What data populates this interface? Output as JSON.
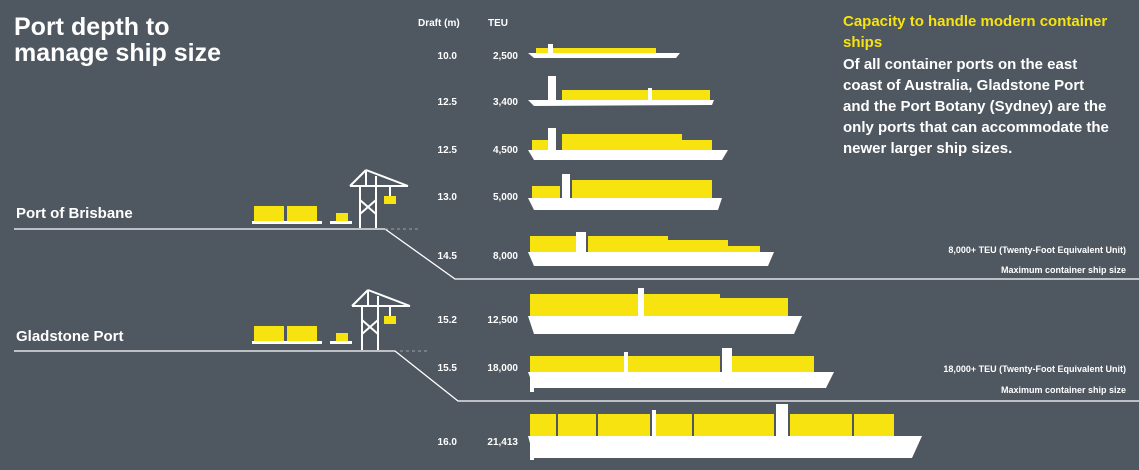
{
  "title": {
    "line1": "Port depth to",
    "line2": "manage ship size"
  },
  "columns": {
    "draft_header": "Draft (m)",
    "teu_header": "TEU"
  },
  "ports": [
    {
      "name": "Port of Brisbane"
    },
    {
      "name": "Gladstone Port"
    }
  ],
  "ships": [
    {
      "draft": "10.0",
      "teu": "2,500"
    },
    {
      "draft": "12.5",
      "teu": "3,400"
    },
    {
      "draft": "12.5",
      "teu": "4,500"
    },
    {
      "draft": "13.0",
      "teu": "5,000"
    },
    {
      "draft": "14.5",
      "teu": "8,000"
    },
    {
      "draft": "15.2",
      "teu": "12,500"
    },
    {
      "draft": "15.5",
      "teu": "18,000"
    },
    {
      "draft": "16.0",
      "teu": "21,413"
    }
  ],
  "capacity": {
    "heading": "Capacity to handle modern container ships",
    "body": "Of all container ports on the east coast of Australia, Gladstone Port and the Port Botany (Sydney) are the only ports that can accommodate the newer larger ship sizes."
  },
  "notes": {
    "brisbane_teu": "8,000+ TEU (Twenty-Foot Equivalent Unit)",
    "brisbane_max": "Maximum container ship size",
    "gladstone_teu": "18,000+ TEU (Twenty-Foot Equivalent Unit)",
    "gladstone_max": "Maximum container ship size"
  },
  "colors": {
    "background": "#4f5760",
    "cargo": "#f6e30f",
    "hull": "#ffffff",
    "heading": "#f6e30f"
  }
}
